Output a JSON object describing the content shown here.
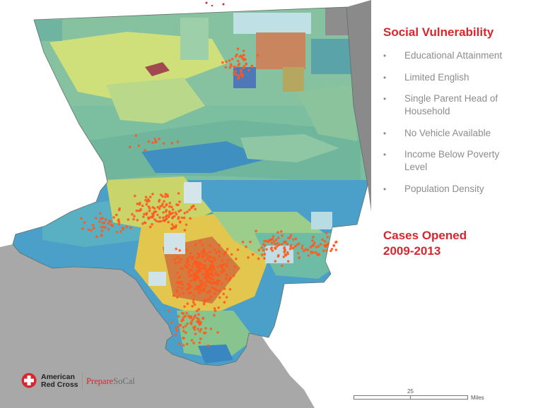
{
  "legend": {
    "heading": "Social Vulnerability",
    "bullet_glyph": "•",
    "factors": [
      {
        "lines": [
          "Educational Attainment"
        ]
      },
      {
        "lines": [
          "Limited English"
        ]
      },
      {
        "lines": [
          "Single Parent Head of",
          "Household"
        ]
      },
      {
        "lines": [
          "No Vehicle Available"
        ]
      },
      {
        "lines": [
          "Income Below Poverty",
          "Level"
        ]
      },
      {
        "lines": [
          "Population Density"
        ]
      }
    ],
    "cases_heading_line1": "Cases Opened",
    "cases_heading_line2": "2009-2013"
  },
  "logo": {
    "org_line1": "American",
    "org_line2": "Red Cross",
    "sub_part1": "Prepare",
    "sub_part2": "SoCal"
  },
  "scale": {
    "value": "25",
    "unit": "Miles"
  },
  "colors": {
    "accent_red": "#d7272e",
    "bullet_gray": "#8c8c8c",
    "case_dot": "#ff5a1e",
    "ocean": "#a8a8a8",
    "outside_land": "#8a8a8a",
    "county_base": "#7bbfa0"
  }
}
